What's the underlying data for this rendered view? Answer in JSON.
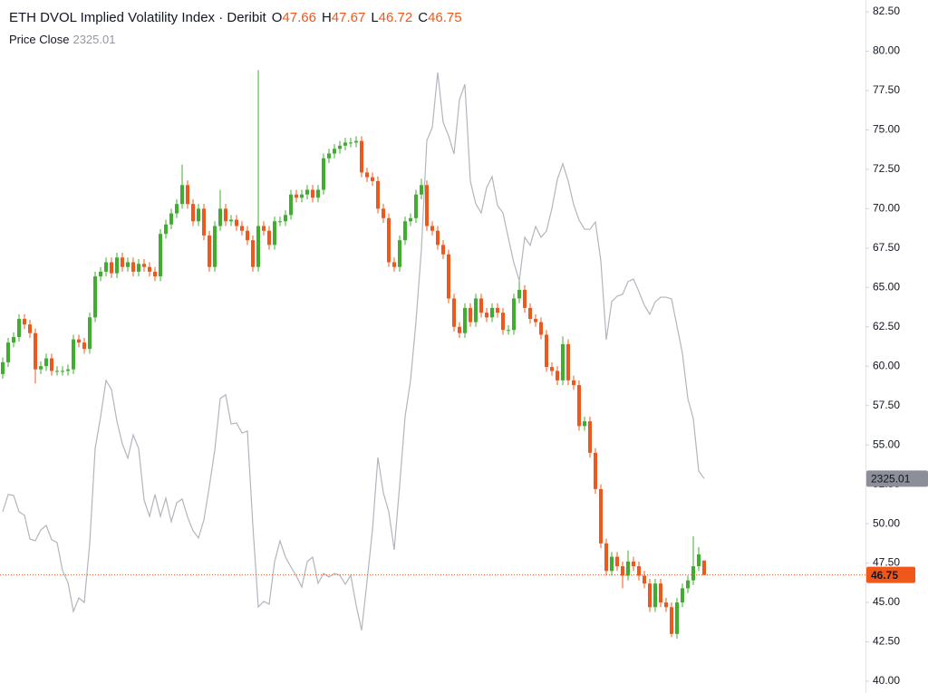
{
  "chart_data": {
    "type": "candlestick",
    "title": "ETH DVOL Implied Volatility Index · Deribit",
    "ohlc_labels": [
      "O",
      "H",
      "L",
      "C"
    ],
    "up_color": "#3fae2e",
    "down_color": "#f0581b",
    "ylim": [
      39.25,
      83.25
    ],
    "yticks": [
      {
        "value": 40,
        "label": "40.00"
      },
      {
        "value": 42.5,
        "label": "42.50"
      },
      {
        "value": 45,
        "label": "45.00"
      },
      {
        "value": 47.5,
        "label": "47.50"
      },
      {
        "value": 50,
        "label": "50.00"
      },
      {
        "value": 52.5,
        "label": "52.50"
      },
      {
        "value": 55,
        "label": "55.00"
      },
      {
        "value": 57.5,
        "label": "57.50"
      },
      {
        "value": 60,
        "label": "60.00"
      },
      {
        "value": 62.5,
        "label": "62.50"
      },
      {
        "value": 65,
        "label": "65.00"
      },
      {
        "value": 67.5,
        "label": "67.50"
      },
      {
        "value": 70,
        "label": "70.00"
      },
      {
        "value": 72.5,
        "label": "72.50"
      },
      {
        "value": 75,
        "label": "75.00"
      },
      {
        "value": 77.5,
        "label": "77.50"
      },
      {
        "value": 80,
        "label": "80.00"
      },
      {
        "value": 82.5,
        "label": "82.50"
      }
    ],
    "candles": {
      "open": [
        59.5,
        60.25,
        61.5,
        61.85,
        63.0,
        62.65,
        62.1,
        59.8,
        60.0,
        60.5,
        59.7,
        59.7,
        59.7,
        59.8,
        61.7,
        61.5,
        61.1,
        63.1,
        65.7,
        66.0,
        66.6,
        65.9,
        66.9,
        66.3,
        66.6,
        66.0,
        66.5,
        66.3,
        66.0,
        65.7,
        68.4,
        69.0,
        69.7,
        70.3,
        71.5,
        70.3,
        69.2,
        70.0,
        68.3,
        66.3,
        68.9,
        70.0,
        69.2,
        69.3,
        68.9,
        68.6,
        68.0,
        66.3,
        68.9,
        68.6,
        67.7,
        69.2,
        69.2,
        69.6,
        70.9,
        70.7,
        70.9,
        71.2,
        70.7,
        71.2,
        73.2,
        73.5,
        73.8,
        74.0,
        74.2,
        74.2,
        74.3,
        72.3,
        72.0,
        71.75,
        70.0,
        69.4,
        66.6,
        66.3,
        68.0,
        69.2,
        69.4,
        70.9,
        71.5,
        68.9,
        68.6,
        67.7,
        67.1,
        64.3,
        62.5,
        62.1,
        63.7,
        62.8,
        64.3,
        63.4,
        63.1,
        63.7,
        63.4,
        62.3,
        62.3,
        64.3,
        64.85,
        63.7,
        63.0,
        62.8,
        62.0,
        59.95,
        59.7,
        59.1,
        61.4,
        59.1,
        58.8,
        56.2,
        56.5,
        54.5,
        52.2,
        48.75,
        47.0,
        47.9,
        47.3,
        46.7,
        47.6,
        47.3,
        46.7,
        46.2,
        44.7,
        46.2,
        45.0,
        44.7,
        43.0,
        45.0,
        45.9,
        46.4,
        47.3,
        47.66
      ],
      "high": [
        60.55,
        61.8,
        62.15,
        63.3,
        63.3,
        62.95,
        62.4,
        60.3,
        60.8,
        60.8,
        60.0,
        60.0,
        60.1,
        62.0,
        62.0,
        61.8,
        63.4,
        66.0,
        66.3,
        66.9,
        66.9,
        67.2,
        67.2,
        66.9,
        66.9,
        66.8,
        66.8,
        66.6,
        66.3,
        68.7,
        69.3,
        70.0,
        70.6,
        72.8,
        71.8,
        70.6,
        70.3,
        70.3,
        68.6,
        69.2,
        71.2,
        70.3,
        69.6,
        69.6,
        69.2,
        68.9,
        68.3,
        78.8,
        69.2,
        68.9,
        69.5,
        69.5,
        69.9,
        71.2,
        71.2,
        71.2,
        71.5,
        71.5,
        71.5,
        73.5,
        73.8,
        74.1,
        74.3,
        74.5,
        74.5,
        74.6,
        74.6,
        72.6,
        72.3,
        72.05,
        70.3,
        69.7,
        66.9,
        68.3,
        69.5,
        69.7,
        71.2,
        71.9,
        71.8,
        69.2,
        68.9,
        68.0,
        67.4,
        64.6,
        62.8,
        64.0,
        64.0,
        64.6,
        64.6,
        63.7,
        64.0,
        64.0,
        63.7,
        62.6,
        64.6,
        65.4,
        65.15,
        64.0,
        63.3,
        63.1,
        62.3,
        60.25,
        60.0,
        61.9,
        61.7,
        59.4,
        59.1,
        56.8,
        56.8,
        54.8,
        52.5,
        49.05,
        48.2,
        48.2,
        47.6,
        48.3,
        47.9,
        47.6,
        47.0,
        46.5,
        46.5,
        46.5,
        45.3,
        45.0,
        45.3,
        46.2,
        46.7,
        49.2,
        48.5,
        47.67
      ],
      "low": [
        59.2,
        59.95,
        61.2,
        61.55,
        62.35,
        61.8,
        58.9,
        59.5,
        59.7,
        59.4,
        59.4,
        59.4,
        59.4,
        59.5,
        61.2,
        60.8,
        60.8,
        62.8,
        65.4,
        65.7,
        65.6,
        65.6,
        66.0,
        66.0,
        65.7,
        65.7,
        66.0,
        65.7,
        65.4,
        65.4,
        68.1,
        68.7,
        69.4,
        70.0,
        70.0,
        68.9,
        68.9,
        68.0,
        66.0,
        66.0,
        68.6,
        68.9,
        68.9,
        68.6,
        68.3,
        67.7,
        66.0,
        66.0,
        68.3,
        67.4,
        67.4,
        68.9,
        68.9,
        69.3,
        70.4,
        70.4,
        70.6,
        70.4,
        70.4,
        70.9,
        72.9,
        73.2,
        73.5,
        73.7,
        73.9,
        73.9,
        72.0,
        71.7,
        71.45,
        69.7,
        69.1,
        66.3,
        66.0,
        66.0,
        67.7,
        68.9,
        69.1,
        70.6,
        68.6,
        68.3,
        67.4,
        66.8,
        64.0,
        62.2,
        61.8,
        61.8,
        62.5,
        62.5,
        63.1,
        62.8,
        62.8,
        63.1,
        62.0,
        62.0,
        62.0,
        64.0,
        63.4,
        62.7,
        62.5,
        61.7,
        59.65,
        59.4,
        58.8,
        58.8,
        58.8,
        58.5,
        55.9,
        55.9,
        54.2,
        51.9,
        48.45,
        46.7,
        46.7,
        47.0,
        45.9,
        46.4,
        47.0,
        46.4,
        45.9,
        44.4,
        44.4,
        44.7,
        44.4,
        42.8,
        42.7,
        44.7,
        45.6,
        46.1,
        47.0,
        46.72
      ],
      "close": [
        60.25,
        61.5,
        61.85,
        63.0,
        62.65,
        62.1,
        59.8,
        60.0,
        60.5,
        59.7,
        59.7,
        59.7,
        59.8,
        61.7,
        61.5,
        61.1,
        63.1,
        65.7,
        66.0,
        66.6,
        65.9,
        66.9,
        66.3,
        66.6,
        66.0,
        66.5,
        66.3,
        66.0,
        65.7,
        68.4,
        69.0,
        69.7,
        70.3,
        71.5,
        70.3,
        69.2,
        70.0,
        68.3,
        66.3,
        68.9,
        70.0,
        69.2,
        69.3,
        68.9,
        68.6,
        68.0,
        66.3,
        68.9,
        68.6,
        67.7,
        69.2,
        69.2,
        69.6,
        70.9,
        70.7,
        70.9,
        71.2,
        70.7,
        71.2,
        73.2,
        73.5,
        73.8,
        74.0,
        74.2,
        74.2,
        74.3,
        72.3,
        72.0,
        71.75,
        70.0,
        69.4,
        66.6,
        66.3,
        68.0,
        69.2,
        69.4,
        70.9,
        71.5,
        68.9,
        68.6,
        67.7,
        67.1,
        64.3,
        62.5,
        62.1,
        63.7,
        62.8,
        64.3,
        63.4,
        63.1,
        63.7,
        63.4,
        62.3,
        62.3,
        64.3,
        64.85,
        63.7,
        63.0,
        62.8,
        62.0,
        59.95,
        59.7,
        59.1,
        61.4,
        59.1,
        58.8,
        56.2,
        56.5,
        54.5,
        52.2,
        48.75,
        47.0,
        47.9,
        47.3,
        46.7,
        47.6,
        47.3,
        46.7,
        46.2,
        44.7,
        46.2,
        45.0,
        44.7,
        43.0,
        45.0,
        45.9,
        46.4,
        47.3,
        48.05,
        46.75
      ]
    },
    "y2lim": [
      1473,
      4227
    ],
    "overlay": {
      "type": "line",
      "name": "Price Close",
      "color": "#b2b5be",
      "axis": "y2",
      "values": [
        2193,
        2262,
        2258,
        2193,
        2179,
        2085,
        2078,
        2121,
        2139,
        2082,
        2071,
        1959,
        1912,
        1797,
        1851,
        1833,
        2067,
        2445,
        2571,
        2715,
        2679,
        2553,
        2463,
        2406,
        2499,
        2445,
        2240,
        2175,
        2262,
        2175,
        2247,
        2154,
        2229,
        2244,
        2172,
        2118,
        2089,
        2161,
        2294,
        2438,
        2643,
        2658,
        2542,
        2546,
        2506,
        2514,
        2139,
        1815,
        1837,
        1826,
        1995,
        2078,
        2013,
        1974,
        1938,
        1894,
        1995,
        2013,
        1909,
        1948,
        1934,
        1948,
        1941,
        1905,
        1941,
        1822,
        1722,
        1916,
        2121,
        2409,
        2269,
        2193,
        2042,
        2298,
        2571,
        2715,
        2949,
        3237,
        3669,
        3720,
        3939,
        3741,
        3687,
        3615,
        3831,
        3892,
        3507,
        3417,
        3381,
        3482,
        3525,
        3410,
        3381,
        3280,
        3183,
        3111,
        3284,
        3252,
        3327,
        3284,
        3309,
        3399,
        3514,
        3576,
        3507,
        3414,
        3352,
        3316,
        3316,
        3345,
        3190,
        2877,
        3028,
        3050,
        3057,
        3108,
        3118,
        3068,
        3014,
        2978,
        3028,
        3046,
        3046,
        3039,
        2931,
        2823,
        2643,
        2564,
        2355,
        2325.01
      ]
    }
  }
}
